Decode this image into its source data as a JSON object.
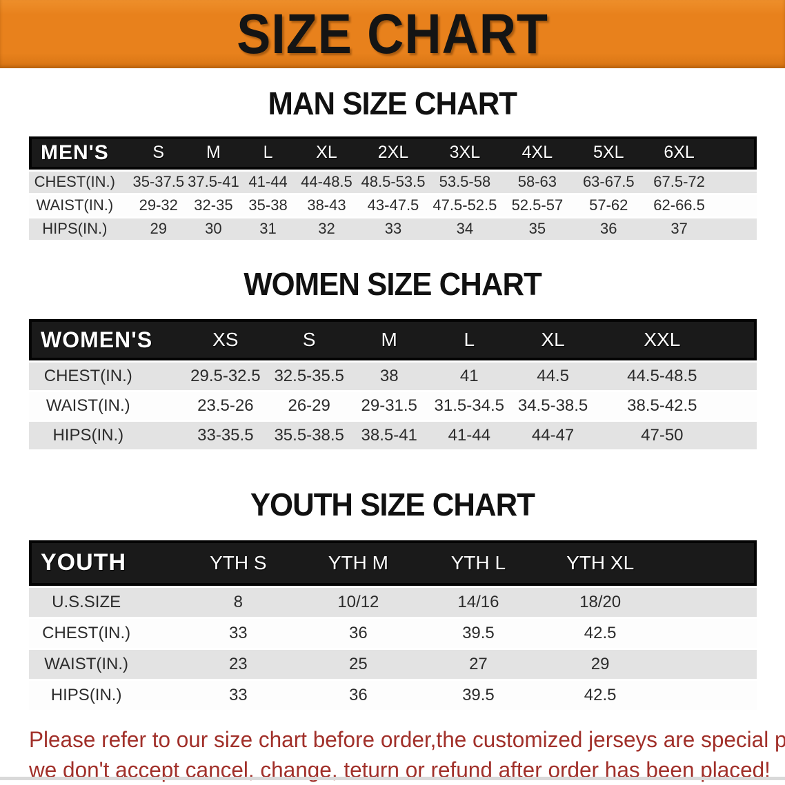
{
  "banner": {
    "title": "SIZE CHART"
  },
  "sections": [
    {
      "heading": "MAN SIZE CHART",
      "table": {
        "header_label": "MEN'S",
        "columns": [
          "S",
          "M",
          "L",
          "XL",
          "2XL",
          "3XL",
          "4XL",
          "5XL",
          "6XL"
        ],
        "rows": [
          {
            "label": "CHEST(IN.)",
            "values": [
              "35-37.5",
              "37.5-41",
              "41-44",
              "44-48.5",
              "48.5-53.5",
              "53.5-58",
              "58-63",
              "63-67.5",
              "67.5-72"
            ]
          },
          {
            "label": "WAIST(IN.)",
            "values": [
              "29-32",
              "32-35",
              "35-38",
              "38-43",
              "43-47.5",
              "47.5-52.5",
              "52.5-57",
              "57-62",
              "62-66.5"
            ]
          },
          {
            "label": "HIPS(IN.)",
            "values": [
              "29",
              "30",
              "31",
              "32",
              "33",
              "34",
              "35",
              "36",
              "37"
            ]
          }
        ]
      }
    },
    {
      "heading": "WOMEN SIZE CHART",
      "table": {
        "header_label": "WOMEN'S",
        "columns": [
          "XS",
          "S",
          "M",
          "L",
          "XL",
          "XXL"
        ],
        "rows": [
          {
            "label": "CHEST(IN.)",
            "values": [
              "29.5-32.5",
              "32.5-35.5",
              "38",
              "41",
              "44.5",
              "44.5-48.5"
            ]
          },
          {
            "label": "WAIST(IN.)",
            "values": [
              "23.5-26",
              "26-29",
              "29-31.5",
              "31.5-34.5",
              "34.5-38.5",
              "38.5-42.5"
            ]
          },
          {
            "label": "HIPS(IN.)",
            "values": [
              "33-35.5",
              "35.5-38.5",
              "38.5-41",
              "41-44",
              "44-47",
              "47-50"
            ]
          }
        ]
      }
    },
    {
      "heading": "YOUTH SIZE CHART",
      "table": {
        "header_label": "YOUTH",
        "columns": [
          "YTH S",
          "YTH M",
          "YTH L",
          "YTH XL"
        ],
        "rows": [
          {
            "label": "U.S.SIZE",
            "values": [
              "8",
              "10/12",
              "14/16",
              "18/20"
            ]
          },
          {
            "label": "CHEST(IN.)",
            "values": [
              "33",
              "36",
              "39.5",
              "42.5"
            ]
          },
          {
            "label": "WAIST(IN.)",
            "values": [
              "23",
              "25",
              "27",
              "29"
            ]
          },
          {
            "label": "HIPS(IN.)",
            "values": [
              "33",
              "36",
              "39.5",
              "42.5"
            ]
          }
        ]
      }
    }
  ],
  "disclaimer": {
    "line1": "Please refer to our size chart before order,the customized jerseys are special products,",
    "line2": "we don't accept cancel, change, teturn or refund after order has been placed!"
  },
  "colors": {
    "banner_orange": "#E8811C",
    "header_bar_black": "#1A1A1A",
    "row_shade_gray": "#E3E3E3",
    "disclaimer_red": "#A1302A"
  }
}
